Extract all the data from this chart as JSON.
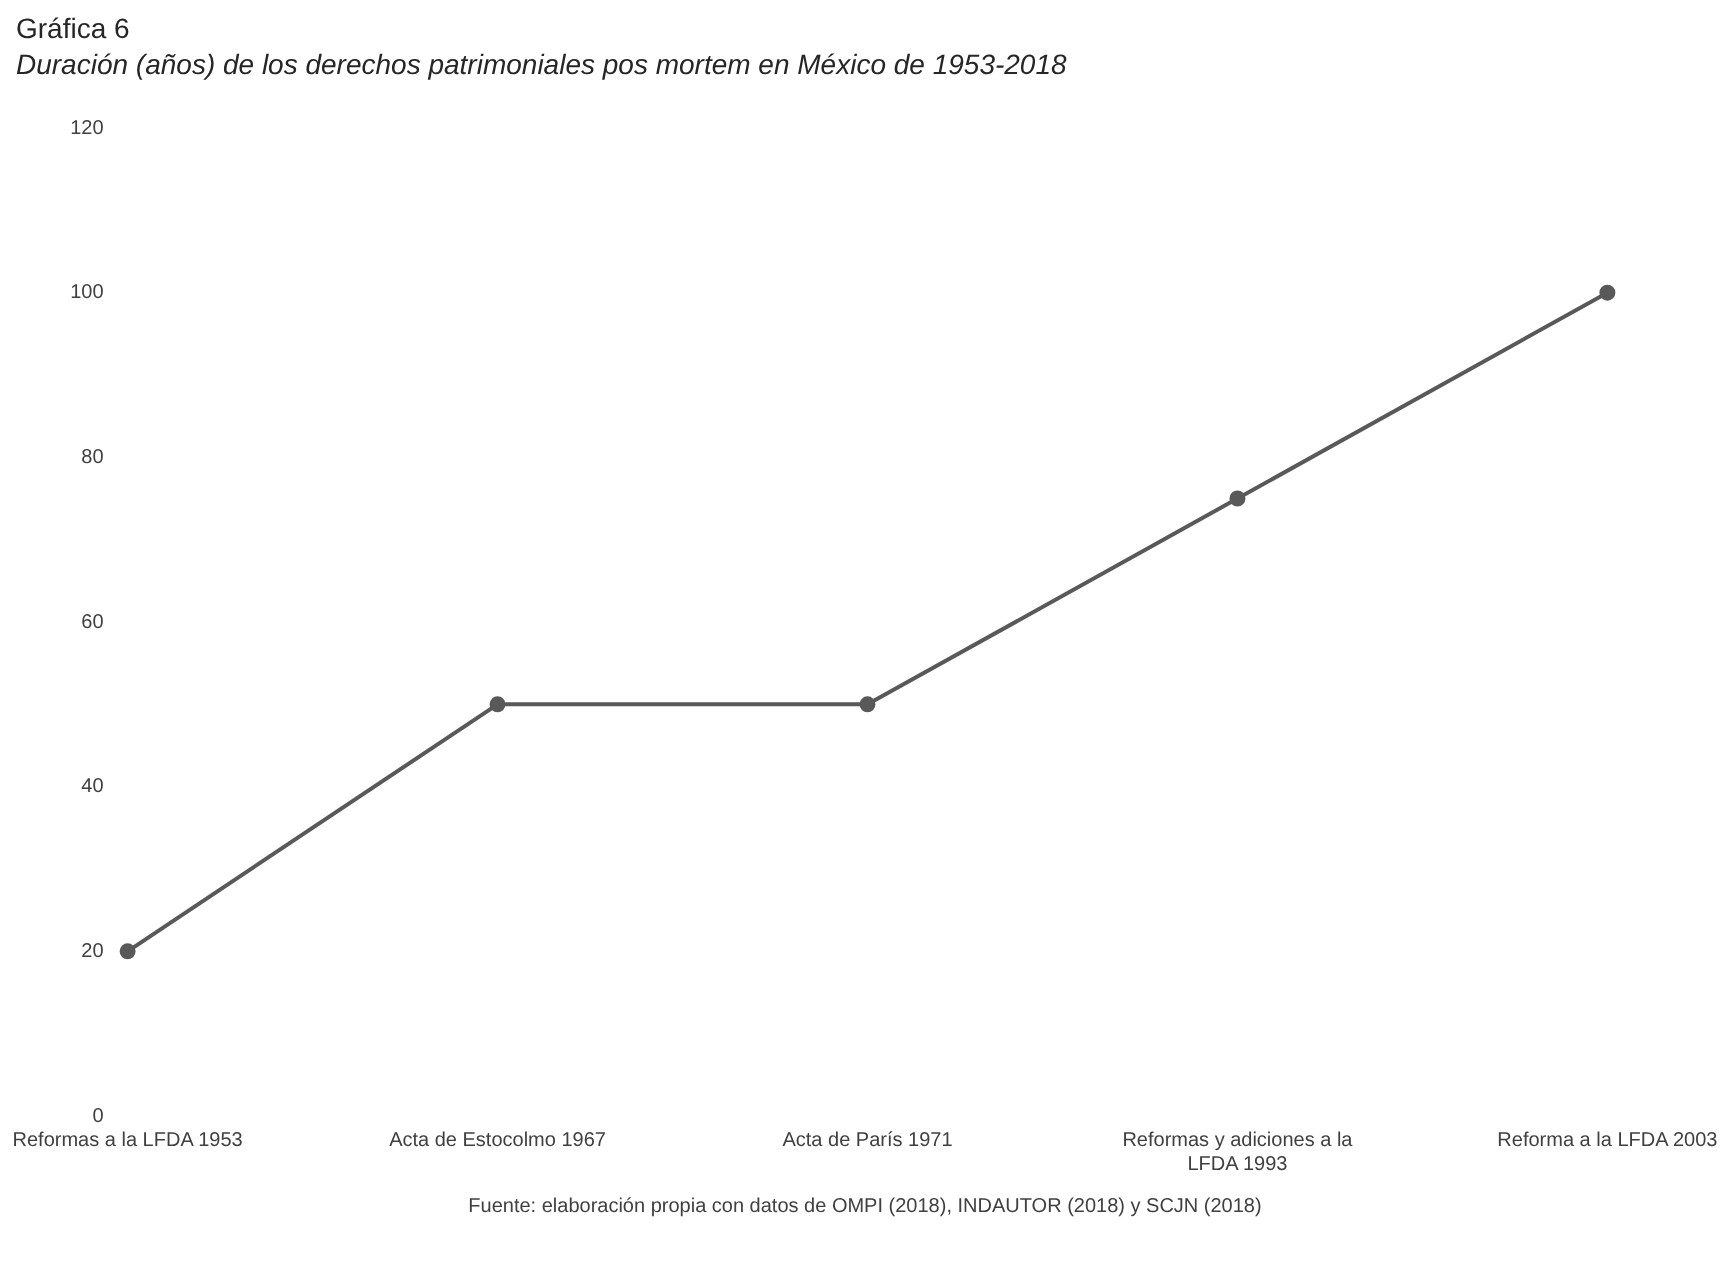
{
  "chart_data": {
    "type": "line",
    "title": "Gráfica 6",
    "subtitle": "Duración (años) de los derechos patrimoniales pos mortem en México de 1953-2018",
    "categories": [
      "Reformas a la LFDA 1953",
      "Acta de Estocolmo 1967",
      "Acta de París 1971",
      "Reformas y adiciones a la LFDA 1993",
      "Reforma a la LFDA 2003"
    ],
    "series": [
      {
        "color": "#595959",
        "values": [
          20,
          50,
          50,
          75,
          100
        ]
      }
    ],
    "ylim": [
      0,
      120
    ],
    "yticks": [
      0,
      20,
      40,
      60,
      80,
      100,
      120
    ],
    "grid": false,
    "legend": false,
    "marker": "circle",
    "line_style": "solid",
    "annotations": [
      "Fuente: elaboración propia con datos de OMPI (2018), INDAUTOR (2018) y SCJN (2018)"
    ]
  }
}
